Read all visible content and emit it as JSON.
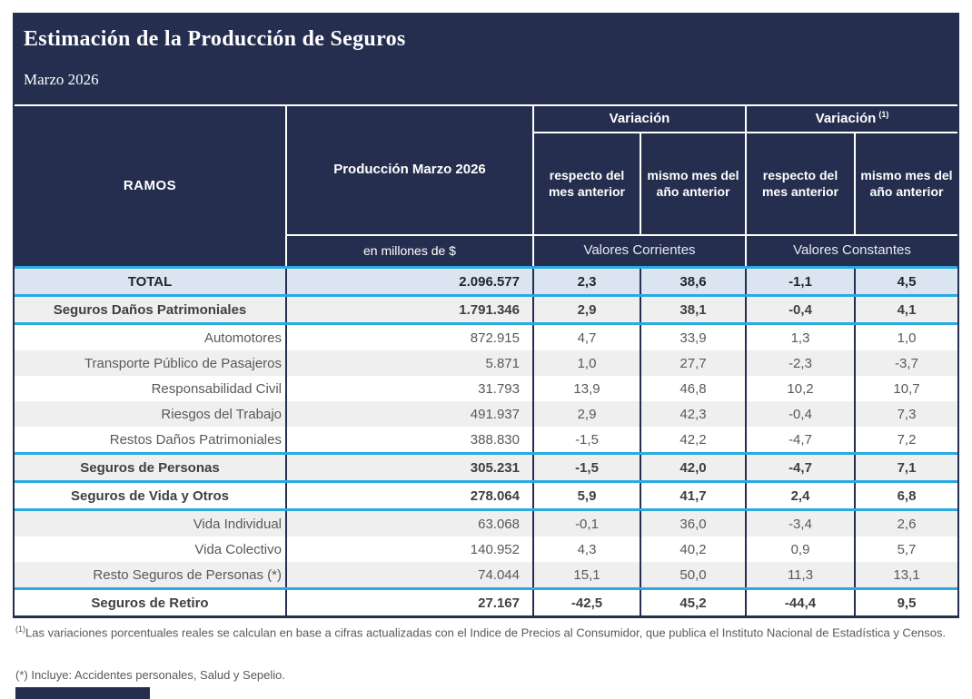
{
  "colors": {
    "navy": "#252e4f",
    "cyan_accent": "#29abe2",
    "total_row_bg": "#dbe5f1",
    "alt_row_bg": "#efefef",
    "body_text": "#58595b"
  },
  "header": {
    "title": "Estimación de la Producción de Seguros",
    "subtitle": "Marzo 2026"
  },
  "table": {
    "ramos_header": "RAMOS",
    "produccion_header": "Producción Marzo 2026",
    "produccion_unit": "en millones de $",
    "variacion_corrientes_header": "Variación",
    "variacion_constantes_header": "Variación",
    "variacion_constantes_ref": "(1)",
    "sub_respecto_mes": "respecto del mes anterior",
    "sub_mismo_mes": "mismo mes del año anterior",
    "valores_corrientes": "Valores Corrientes",
    "valores_constantes": "Valores Constantes",
    "rows": [
      {
        "label": "TOTAL",
        "produccion": "2.096.577",
        "vc_mes": "2,3",
        "vc_anio": "38,6",
        "vk_mes": "-1,1",
        "vk_anio": "4,5"
      },
      {
        "label": "Seguros Daños Patrimoniales",
        "produccion": "1.791.346",
        "vc_mes": "2,9",
        "vc_anio": "38,1",
        "vk_mes": "-0,4",
        "vk_anio": "4,1"
      },
      {
        "label": "Automotores",
        "produccion": "872.915",
        "vc_mes": "4,7",
        "vc_anio": "33,9",
        "vk_mes": "1,3",
        "vk_anio": "1,0"
      },
      {
        "label": "Transporte Público de Pasajeros",
        "produccion": "5.871",
        "vc_mes": "1,0",
        "vc_anio": "27,7",
        "vk_mes": "-2,3",
        "vk_anio": "-3,7"
      },
      {
        "label": "Responsabilidad Civil",
        "produccion": "31.793",
        "vc_mes": "13,9",
        "vc_anio": "46,8",
        "vk_mes": "10,2",
        "vk_anio": "10,7"
      },
      {
        "label": "Riesgos del Trabajo",
        "produccion": "491.937",
        "vc_mes": "2,9",
        "vc_anio": "42,3",
        "vk_mes": "-0,4",
        "vk_anio": "7,3"
      },
      {
        "label": "Restos Daños Patrimoniales",
        "produccion": "388.830",
        "vc_mes": "-1,5",
        "vc_anio": "42,2",
        "vk_mes": "-4,7",
        "vk_anio": "7,2"
      },
      {
        "label": "Seguros de Personas",
        "produccion": "305.231",
        "vc_mes": "-1,5",
        "vc_anio": "42,0",
        "vk_mes": "-4,7",
        "vk_anio": "7,1"
      },
      {
        "label": "Seguros de Vida y Otros",
        "produccion": "278.064",
        "vc_mes": "5,9",
        "vc_anio": "41,7",
        "vk_mes": "2,4",
        "vk_anio": "6,8"
      },
      {
        "label": "Vida Individual",
        "produccion": "63.068",
        "vc_mes": "-0,1",
        "vc_anio": "36,0",
        "vk_mes": "-3,4",
        "vk_anio": "2,6"
      },
      {
        "label": "Vida Colectivo",
        "produccion": "140.952",
        "vc_mes": "4,3",
        "vc_anio": "40,2",
        "vk_mes": "0,9",
        "vk_anio": "5,7"
      },
      {
        "label": "Resto Seguros de Personas (*)",
        "produccion": "74.044",
        "vc_mes": "15,1",
        "vc_anio": "50,0",
        "vk_mes": "11,3",
        "vk_anio": "13,1"
      },
      {
        "label": "Seguros de Retiro",
        "produccion": "27.167",
        "vc_mes": "-42,5",
        "vc_anio": "45,2",
        "vk_mes": "-44,4",
        "vk_anio": "9,5"
      }
    ]
  },
  "footnotes": {
    "note1_ref": "(1)",
    "note1": "Las variaciones porcentuales reales se calculan en base a cifras actualizadas con  el Indice de Precios al Consumidor, que publica el Instituto Nacional de Estadística y  Censos.",
    "note2": "(*) Incluye: Accidentes personales, Salud y Sepelio."
  }
}
